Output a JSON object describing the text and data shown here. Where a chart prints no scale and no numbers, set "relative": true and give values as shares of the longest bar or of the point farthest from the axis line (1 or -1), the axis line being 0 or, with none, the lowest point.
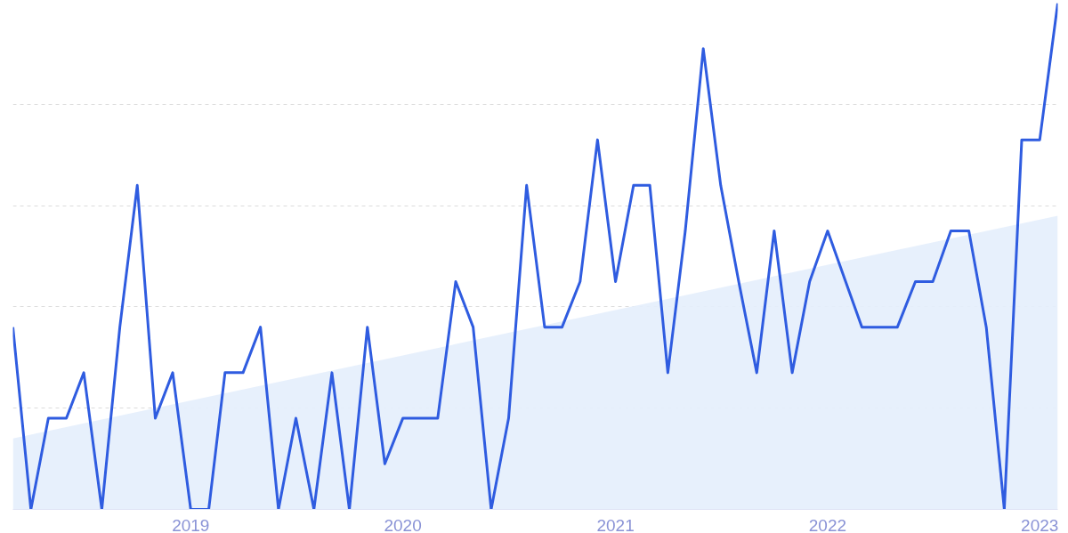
{
  "chart_data": {
    "type": "line",
    "relative": true,
    "grid": "y",
    "xlim": [
      "2018-03",
      "2023-02"
    ],
    "xticks": [
      "2019",
      "2020",
      "2021",
      "2022",
      "2023"
    ],
    "series": [
      {
        "color": "#2f5ce0",
        "x": [
          "2018-03",
          "2018-04",
          "2018-05",
          "2018-06",
          "2018-07",
          "2018-08",
          "2018-09",
          "2018-10",
          "2018-11",
          "2018-12",
          "2019-01",
          "2019-02",
          "2019-03",
          "2019-04",
          "2019-05",
          "2019-06",
          "2019-07",
          "2019-08",
          "2019-09",
          "2019-10",
          "2019-11",
          "2019-12",
          "2020-01",
          "2020-02",
          "2020-03",
          "2020-04",
          "2020-05",
          "2020-06",
          "2020-07",
          "2020-08",
          "2020-09",
          "2020-10",
          "2020-11",
          "2020-12",
          "2021-01",
          "2021-02",
          "2021-03",
          "2021-04",
          "2021-05",
          "2021-06",
          "2021-07",
          "2021-08",
          "2021-09",
          "2021-10",
          "2021-11",
          "2021-12",
          "2022-01",
          "2022-02",
          "2022-03",
          "2022-04",
          "2022-05",
          "2022-06",
          "2022-07",
          "2022-08",
          "2022-09",
          "2022-10",
          "2022-11",
          "2022-12",
          "2023-01",
          "2023-02"
        ],
        "values": [
          0.36,
          0,
          0.18,
          0.18,
          0.27,
          0,
          0.36,
          0.64,
          0.18,
          0.27,
          0,
          0,
          0.27,
          0.27,
          0.36,
          0,
          0.18,
          0,
          0.27,
          0,
          0.36,
          0.09,
          0.18,
          0.18,
          0.18,
          0.45,
          0.36,
          0,
          0.18,
          0.64,
          0.36,
          0.36,
          0.45,
          0.73,
          0.45,
          0.64,
          0.64,
          0.27,
          0.55,
          0.91,
          0.64,
          0.45,
          0.27,
          0.55,
          0.27,
          0.45,
          0.55,
          0.45,
          0.36,
          0.36,
          0.36,
          0.45,
          0.45,
          0.55,
          0.55,
          0.36,
          0,
          0.73,
          0.73,
          1
        ]
      },
      {
        "type": "area",
        "color": "#e4eefc",
        "x": [
          "2018-03",
          "2023-02"
        ],
        "values": [
          0.14,
          0.58
        ]
      }
    ]
  }
}
